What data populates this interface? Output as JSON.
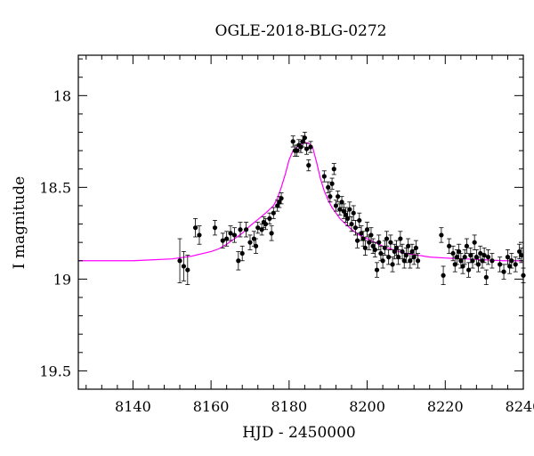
{
  "chart_data": {
    "type": "scatter",
    "title": "OGLE-2018-BLG-0272",
    "xlabel": "HJD - 2450000",
    "ylabel": "I magnitude",
    "xlim": [
      8126,
      8240
    ],
    "ylim": [
      19.6,
      17.78
    ],
    "y_inverted": true,
    "xticks": [
      8140,
      8160,
      8180,
      8200,
      8220,
      8240
    ],
    "yticks": [
      18,
      18.5,
      19,
      19.5
    ],
    "grid": false,
    "colors": {
      "points": "#000000",
      "model": "#ff00ff"
    },
    "model": {
      "name": "",
      "x": [
        8126,
        8130,
        8135,
        8140,
        8145,
        8150,
        8155,
        8160,
        8162,
        8164,
        8166,
        8168,
        8170,
        8172,
        8174,
        8176,
        8177,
        8178,
        8179,
        8180,
        8181,
        8182,
        8183,
        8184,
        8185,
        8186,
        8187,
        8188,
        8189,
        8190,
        8191,
        8192,
        8193,
        8194,
        8195,
        8196,
        8197,
        8198,
        8200,
        8202,
        8204,
        8206,
        8208,
        8210,
        8213,
        8216,
        8220,
        8225,
        8230,
        8235,
        8240
      ],
      "y": [
        18.9,
        18.9,
        18.9,
        18.9,
        18.895,
        18.89,
        18.875,
        18.85,
        18.835,
        18.81,
        18.78,
        18.75,
        18.71,
        18.675,
        18.64,
        18.6,
        18.56,
        18.5,
        18.43,
        18.35,
        18.3,
        18.28,
        18.265,
        18.255,
        18.26,
        18.28,
        18.36,
        18.45,
        18.52,
        18.57,
        18.61,
        18.64,
        18.67,
        18.69,
        18.71,
        18.73,
        18.745,
        18.76,
        18.78,
        18.8,
        18.82,
        18.835,
        18.85,
        18.86,
        18.87,
        18.88,
        18.885,
        18.89,
        18.895,
        18.9,
        18.9
      ]
    },
    "series": [
      {
        "name": "",
        "points": [
          {
            "x": 8152,
            "y": 18.9,
            "err": 0.12
          },
          {
            "x": 8153,
            "y": 18.93,
            "err": 0.08
          },
          {
            "x": 8154,
            "y": 18.95,
            "err": 0.08
          },
          {
            "x": 8156,
            "y": 18.72,
            "err": 0.05
          },
          {
            "x": 8157,
            "y": 18.76,
            "err": 0.05
          },
          {
            "x": 8161,
            "y": 18.72,
            "err": 0.04
          },
          {
            "x": 8163,
            "y": 18.79,
            "err": 0.04
          },
          {
            "x": 8164,
            "y": 18.78,
            "err": 0.04
          },
          {
            "x": 8165,
            "y": 18.75,
            "err": 0.04
          },
          {
            "x": 8166,
            "y": 18.76,
            "err": 0.04
          },
          {
            "x": 8167,
            "y": 18.9,
            "err": 0.05
          },
          {
            "x": 8167.5,
            "y": 18.73,
            "err": 0.04
          },
          {
            "x": 8168,
            "y": 18.86,
            "err": 0.04
          },
          {
            "x": 8169,
            "y": 18.73,
            "err": 0.04
          },
          {
            "x": 8170,
            "y": 18.8,
            "err": 0.04
          },
          {
            "x": 8171,
            "y": 18.78,
            "err": 0.04
          },
          {
            "x": 8171.5,
            "y": 18.82,
            "err": 0.04
          },
          {
            "x": 8172,
            "y": 18.72,
            "err": 0.03
          },
          {
            "x": 8173,
            "y": 18.73,
            "err": 0.03
          },
          {
            "x": 8173.5,
            "y": 18.69,
            "err": 0.03
          },
          {
            "x": 8174,
            "y": 18.7,
            "err": 0.03
          },
          {
            "x": 8175,
            "y": 18.67,
            "err": 0.03
          },
          {
            "x": 8175.5,
            "y": 18.75,
            "err": 0.04
          },
          {
            "x": 8176,
            "y": 18.64,
            "err": 0.03
          },
          {
            "x": 8177,
            "y": 18.6,
            "err": 0.03
          },
          {
            "x": 8177.5,
            "y": 18.58,
            "err": 0.03
          },
          {
            "x": 8178,
            "y": 18.56,
            "err": 0.03
          },
          {
            "x": 8181,
            "y": 18.25,
            "err": 0.03
          },
          {
            "x": 8181.5,
            "y": 18.3,
            "err": 0.03
          },
          {
            "x": 8182,
            "y": 18.3,
            "err": 0.03
          },
          {
            "x": 8182.5,
            "y": 18.27,
            "err": 0.03
          },
          {
            "x": 8183,
            "y": 18.28,
            "err": 0.03
          },
          {
            "x": 8183.5,
            "y": 18.25,
            "err": 0.03
          },
          {
            "x": 8184,
            "y": 18.23,
            "err": 0.03
          },
          {
            "x": 8184.5,
            "y": 18.29,
            "err": 0.03
          },
          {
            "x": 8185,
            "y": 18.38,
            "err": 0.03
          },
          {
            "x": 8185.5,
            "y": 18.28,
            "err": 0.03
          },
          {
            "x": 8189,
            "y": 18.44,
            "err": 0.03
          },
          {
            "x": 8190,
            "y": 18.5,
            "err": 0.03
          },
          {
            "x": 8190.5,
            "y": 18.55,
            "err": 0.03
          },
          {
            "x": 8191,
            "y": 18.48,
            "err": 0.03
          },
          {
            "x": 8191.5,
            "y": 18.4,
            "err": 0.03
          },
          {
            "x": 8192,
            "y": 18.6,
            "err": 0.03
          },
          {
            "x": 8192.5,
            "y": 18.55,
            "err": 0.03
          },
          {
            "x": 8193,
            "y": 18.62,
            "err": 0.03
          },
          {
            "x": 8193.5,
            "y": 18.58,
            "err": 0.03
          },
          {
            "x": 8194,
            "y": 18.63,
            "err": 0.04
          },
          {
            "x": 8194.5,
            "y": 18.65,
            "err": 0.04
          },
          {
            "x": 8195,
            "y": 18.67,
            "err": 0.04
          },
          {
            "x": 8195.5,
            "y": 18.62,
            "err": 0.04
          },
          {
            "x": 8196,
            "y": 18.7,
            "err": 0.04
          },
          {
            "x": 8196.5,
            "y": 18.64,
            "err": 0.04
          },
          {
            "x": 8197,
            "y": 18.72,
            "err": 0.04
          },
          {
            "x": 8197.5,
            "y": 18.79,
            "err": 0.04
          },
          {
            "x": 8198,
            "y": 18.68,
            "err": 0.04
          },
          {
            "x": 8198.5,
            "y": 18.75,
            "err": 0.04
          },
          {
            "x": 8199,
            "y": 18.78,
            "err": 0.04
          },
          {
            "x": 8199.5,
            "y": 18.83,
            "err": 0.04
          },
          {
            "x": 8200,
            "y": 18.73,
            "err": 0.04
          },
          {
            "x": 8200.5,
            "y": 18.8,
            "err": 0.04
          },
          {
            "x": 8201,
            "y": 18.76,
            "err": 0.04
          },
          {
            "x": 8201.5,
            "y": 18.82,
            "err": 0.04
          },
          {
            "x": 8202,
            "y": 18.84,
            "err": 0.04
          },
          {
            "x": 8202.5,
            "y": 18.95,
            "err": 0.04
          },
          {
            "x": 8203,
            "y": 18.8,
            "err": 0.04
          },
          {
            "x": 8203.5,
            "y": 18.86,
            "err": 0.04
          },
          {
            "x": 8204,
            "y": 18.9,
            "err": 0.04
          },
          {
            "x": 8204.5,
            "y": 18.83,
            "err": 0.04
          },
          {
            "x": 8205,
            "y": 18.78,
            "err": 0.04
          },
          {
            "x": 8205.5,
            "y": 18.88,
            "err": 0.04
          },
          {
            "x": 8206,
            "y": 18.8,
            "err": 0.04
          },
          {
            "x": 8206.5,
            "y": 18.92,
            "err": 0.04
          },
          {
            "x": 8207,
            "y": 18.85,
            "err": 0.04
          },
          {
            "x": 8207.5,
            "y": 18.83,
            "err": 0.04
          },
          {
            "x": 8208,
            "y": 18.88,
            "err": 0.04
          },
          {
            "x": 8208.5,
            "y": 18.78,
            "err": 0.04
          },
          {
            "x": 8209,
            "y": 18.85,
            "err": 0.04
          },
          {
            "x": 8209.5,
            "y": 18.9,
            "err": 0.04
          },
          {
            "x": 8210,
            "y": 18.87,
            "err": 0.04
          },
          {
            "x": 8210.5,
            "y": 18.82,
            "err": 0.04
          },
          {
            "x": 8211,
            "y": 18.9,
            "err": 0.04
          },
          {
            "x": 8211.5,
            "y": 18.85,
            "err": 0.04
          },
          {
            "x": 8212,
            "y": 18.88,
            "err": 0.04
          },
          {
            "x": 8212.5,
            "y": 18.83,
            "err": 0.04
          },
          {
            "x": 8213,
            "y": 18.9,
            "err": 0.04
          },
          {
            "x": 8219,
            "y": 18.76,
            "err": 0.04
          },
          {
            "x": 8219.5,
            "y": 18.98,
            "err": 0.05
          },
          {
            "x": 8221,
            "y": 18.82,
            "err": 0.04
          },
          {
            "x": 8222,
            "y": 18.86,
            "err": 0.04
          },
          {
            "x": 8222.5,
            "y": 18.92,
            "err": 0.04
          },
          {
            "x": 8223,
            "y": 18.88,
            "err": 0.04
          },
          {
            "x": 8223.5,
            "y": 18.85,
            "err": 0.04
          },
          {
            "x": 8224,
            "y": 18.9,
            "err": 0.04
          },
          {
            "x": 8224.5,
            "y": 18.93,
            "err": 0.04
          },
          {
            "x": 8225,
            "y": 18.88,
            "err": 0.04
          },
          {
            "x": 8225.5,
            "y": 18.82,
            "err": 0.04
          },
          {
            "x": 8226,
            "y": 18.95,
            "err": 0.04
          },
          {
            "x": 8226.5,
            "y": 18.87,
            "err": 0.04
          },
          {
            "x": 8227,
            "y": 18.9,
            "err": 0.04
          },
          {
            "x": 8227.5,
            "y": 18.8,
            "err": 0.04
          },
          {
            "x": 8228,
            "y": 18.88,
            "err": 0.04
          },
          {
            "x": 8228.5,
            "y": 18.92,
            "err": 0.04
          },
          {
            "x": 8229,
            "y": 18.86,
            "err": 0.04
          },
          {
            "x": 8229.5,
            "y": 18.9,
            "err": 0.04
          },
          {
            "x": 8230,
            "y": 18.87,
            "err": 0.04
          },
          {
            "x": 8230.5,
            "y": 18.99,
            "err": 0.04
          },
          {
            "x": 8231,
            "y": 18.88,
            "err": 0.04
          },
          {
            "x": 8232,
            "y": 18.9,
            "err": 0.04
          },
          {
            "x": 8234,
            "y": 18.92,
            "err": 0.04
          },
          {
            "x": 8235,
            "y": 18.96,
            "err": 0.04
          },
          {
            "x": 8236,
            "y": 18.88,
            "err": 0.04
          },
          {
            "x": 8236.5,
            "y": 18.93,
            "err": 0.04
          },
          {
            "x": 8237,
            "y": 18.9,
            "err": 0.04
          },
          {
            "x": 8238,
            "y": 18.92,
            "err": 0.04
          },
          {
            "x": 8239,
            "y": 18.85,
            "err": 0.04
          },
          {
            "x": 8239.5,
            "y": 18.87,
            "err": 0.04
          },
          {
            "x": 8240,
            "y": 18.98,
            "err": 0.04
          }
        ]
      }
    ]
  }
}
